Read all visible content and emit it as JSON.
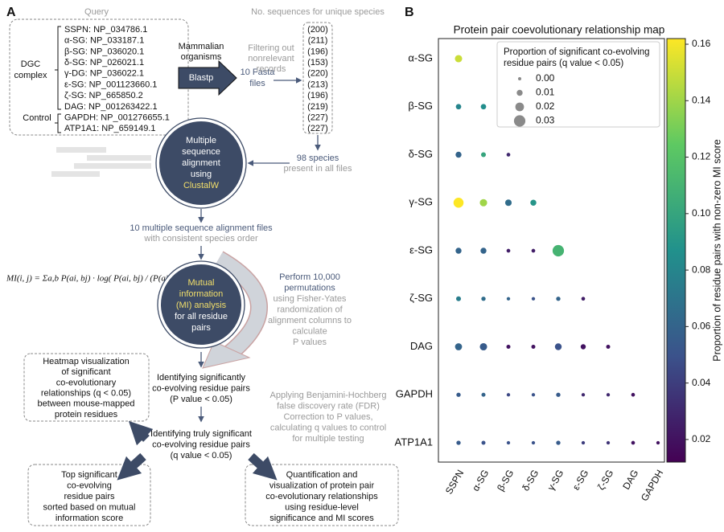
{
  "panel_a": {
    "panel_label": "A",
    "query": {
      "title": "Query",
      "dgc_label": [
        "DGC",
        "complex"
      ],
      "control_label": "Control",
      "entries": [
        "SSPN: NP_034786.1",
        "α-SG: NP_033187.1",
        "β-SG: NP_036020.1",
        "δ-SG: NP_026021.1",
        "γ-DG: NP_036022.1",
        "ε-SG: NP_001123660.1",
        "ζ-SG: NP_665850.2",
        "DAG: NP_001263422.1",
        "GAPDH: NP_001276655.1",
        "ATP1A1: NP_659149.1"
      ]
    },
    "blast": {
      "source": [
        "Mammalian",
        "organisms"
      ],
      "tool": "Blastp",
      "output": [
        "10 Fasta",
        "files"
      ],
      "filter": [
        "Filtering out",
        "nonrelevant",
        "records"
      ]
    },
    "counts": {
      "title": "No. sequences for unique species",
      "values": [
        "(200)",
        "(211)",
        "(196)",
        "(153)",
        "(220)",
        "(213)",
        "(196)",
        "(219)",
        "(227)",
        "(227)"
      ]
    },
    "species": [
      "98 species",
      "present in all files"
    ],
    "alignment": {
      "lines": [
        "Multiple",
        "sequence",
        "alignment",
        "using"
      ],
      "tool": "ClustalW"
    },
    "alignment_files": [
      "10 multiple sequence alignment files",
      "with consistent species order"
    ],
    "formula": "MI(i, j) = Σa,b P(ai, bj) · log( P(ai, bj) / (P(ai) · P(bj)) )",
    "mi_analysis": {
      "highlight": [
        "Mutual",
        "information",
        "(MI) analysis"
      ],
      "lines": [
        "for all residue",
        "pairs"
      ]
    },
    "permutations": {
      "highlight": [
        "Perform 10,000",
        "permutations"
      ],
      "lines": [
        "using Fisher-Yates",
        "randomization of",
        "alignment columns to",
        "calculate",
        "P values"
      ]
    },
    "significant": [
      "Identifying significantly",
      "co-evolving residue pairs",
      "(P value < 0.05)"
    ],
    "fdr": [
      "Applying Benjamini-Hochberg",
      "false discovery rate (FDR)",
      "Correction to P values,",
      "calculating q values to control",
      "for multiple testing"
    ],
    "truly_significant": [
      "Identifying truly significant",
      "co-evolving residue pairs",
      "(q value < 0.05)"
    ],
    "outputs": {
      "heatmap": [
        "Heatmap visualization",
        "of significant",
        "co-evolutionary",
        "relationships (q < 0.05)",
        "between mouse-mapped",
        "protein residues"
      ],
      "top_pairs": [
        "Top significant",
        "co-evolving",
        "residue pairs",
        "sorted based on mutual",
        "information score"
      ],
      "quantification": [
        "Quantification and",
        "visualization of protein pair",
        "co-evolutionary relationships",
        "using residue-level",
        "significance and MI scores"
      ]
    }
  },
  "chart_data": {
    "type": "bubble",
    "panel_label": "B",
    "title": "Protein pair coevolutionary relationship map",
    "x_categories": [
      "SSPN",
      "α-SG",
      "β-SG",
      "δ-SG",
      "γ-SG",
      "ε-SG",
      "ζ-SG",
      "DAG",
      "GAPDH"
    ],
    "rows": [
      {
        "name": "α-SG",
        "color_values": [
          0.15
        ],
        "sizes": [
          0.015
        ]
      },
      {
        "name": "β-SG",
        "color_values": [
          0.08,
          0.085
        ],
        "sizes": [
          0.008,
          0.008
        ]
      },
      {
        "name": "δ-SG",
        "color_values": [
          0.06,
          0.1,
          0.03
        ],
        "sizes": [
          0.01,
          0.006,
          0.002
        ]
      },
      {
        "name": "γ-SG",
        "color_values": [
          0.163,
          0.14,
          0.065,
          0.09
        ],
        "sizes": [
          0.025,
          0.015,
          0.012,
          0.01
        ]
      },
      {
        "name": "ε-SG",
        "color_values": [
          0.06,
          0.06,
          0.025,
          0.025,
          0.11
        ],
        "sizes": [
          0.01,
          0.01,
          0.002,
          0.002,
          0.03
        ]
      },
      {
        "name": "ζ-SG",
        "color_values": [
          0.075,
          0.065,
          0.06,
          0.05,
          0.06,
          0.025
        ],
        "sizes": [
          0.006,
          0.004,
          0.001,
          0.001,
          0.004,
          0.002
        ]
      },
      {
        "name": "DAG",
        "color_values": [
          0.06,
          0.055,
          0.02,
          0.02,
          0.05,
          0.02,
          0.02
        ],
        "sizes": [
          0.014,
          0.015,
          0.003,
          0.003,
          0.013,
          0.007,
          0.003
        ]
      },
      {
        "name": "GAPDH",
        "color_values": [
          0.055,
          0.06,
          0.045,
          0.05,
          0.055,
          0.03,
          0.03,
          0.02
        ],
        "sizes": [
          0.004,
          0.003,
          0.001,
          0.001,
          0.004,
          0.001,
          0.001,
          0.002
        ]
      },
      {
        "name": "ATP1A1",
        "color_values": [
          0.055,
          0.05,
          0.05,
          0.05,
          0.055,
          0.04,
          0.035,
          0.02,
          0.02
        ],
        "sizes": [
          0.004,
          0.003,
          0.001,
          0.001,
          0.004,
          0.001,
          0.001,
          0.002,
          0.001
        ]
      }
    ],
    "colorbar": {
      "label": "Proportion of residue pairs with non-zero MI score",
      "colormap": "viridis",
      "lim": [
        0.012,
        0.162
      ],
      "ticks": [
        0.02,
        0.04,
        0.06,
        0.08,
        {
          "value": 0.1,
          "label": "0.10"
        },
        0.12,
        0.14,
        0.16
      ]
    },
    "size_legend": {
      "title": [
        "Proportion of significant co-evolving",
        "residue pairs (q value < 0.05)"
      ],
      "corner": "upper right",
      "values": [
        {
          "value": 0,
          "label": "0.00"
        },
        0.01,
        0.02,
        0.03
      ]
    }
  }
}
